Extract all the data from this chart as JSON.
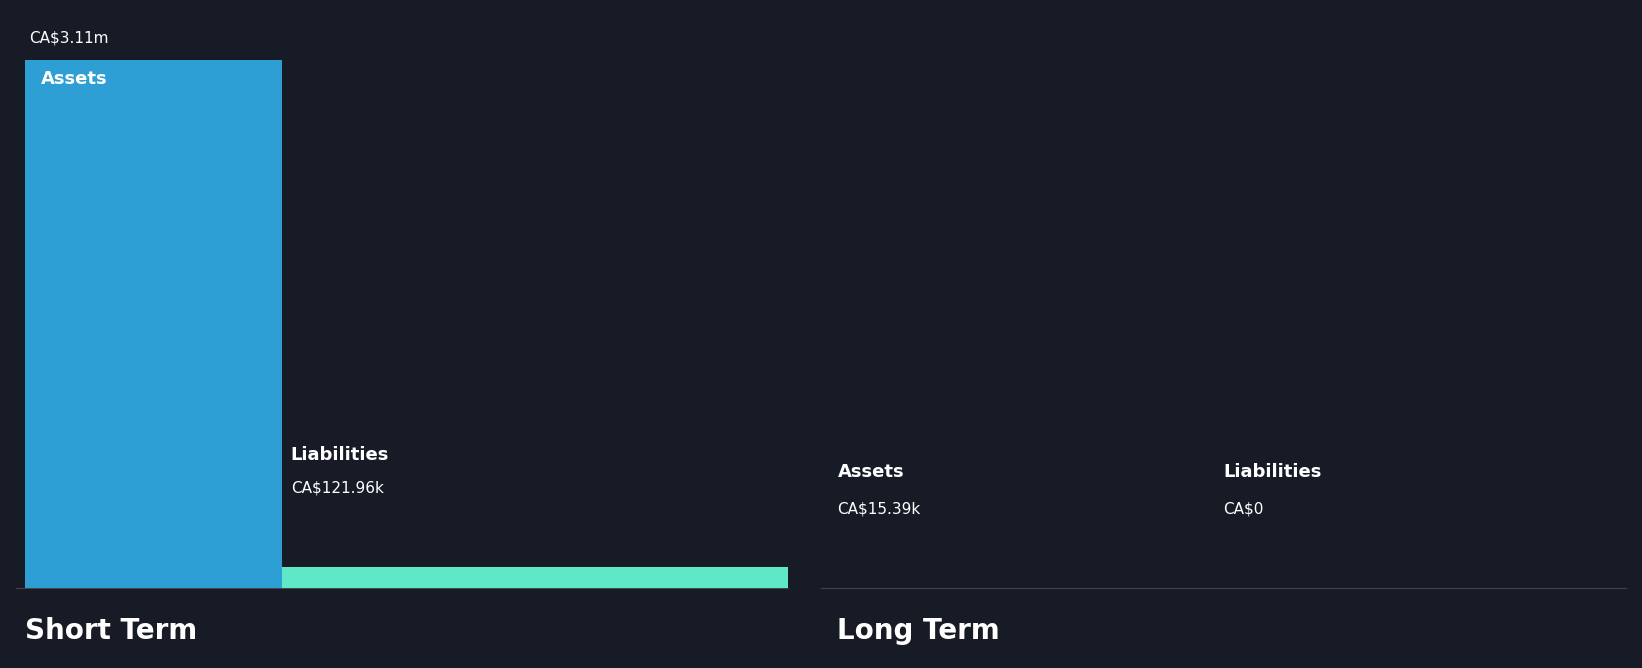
{
  "background_color": "#161b26",
  "short_term": {
    "assets_value": 3110000,
    "assets_label": "CA$3.11m",
    "assets_text": "Assets",
    "liabilities_value": 121960,
    "liabilities_label": "CA$121.96k",
    "liabilities_text": "Liabilities",
    "section_title": "Short Term"
  },
  "long_term": {
    "assets_value": 15390,
    "assets_label": "CA$15.39k",
    "assets_text": "Assets",
    "liabilities_value": 0,
    "liabilities_label": "CA$0",
    "liabilities_text": "Liabilities",
    "section_title": "Long Term"
  },
  "assets_color": "#2e9fd4",
  "liabilities_color": "#5ee8c8",
  "text_color": "#ffffff",
  "divider_color": "#444444",
  "label_fontsize": 11,
  "inner_label_fontsize": 13,
  "section_title_fontsize": 20,
  "value_above_bar_fontsize": 11
}
